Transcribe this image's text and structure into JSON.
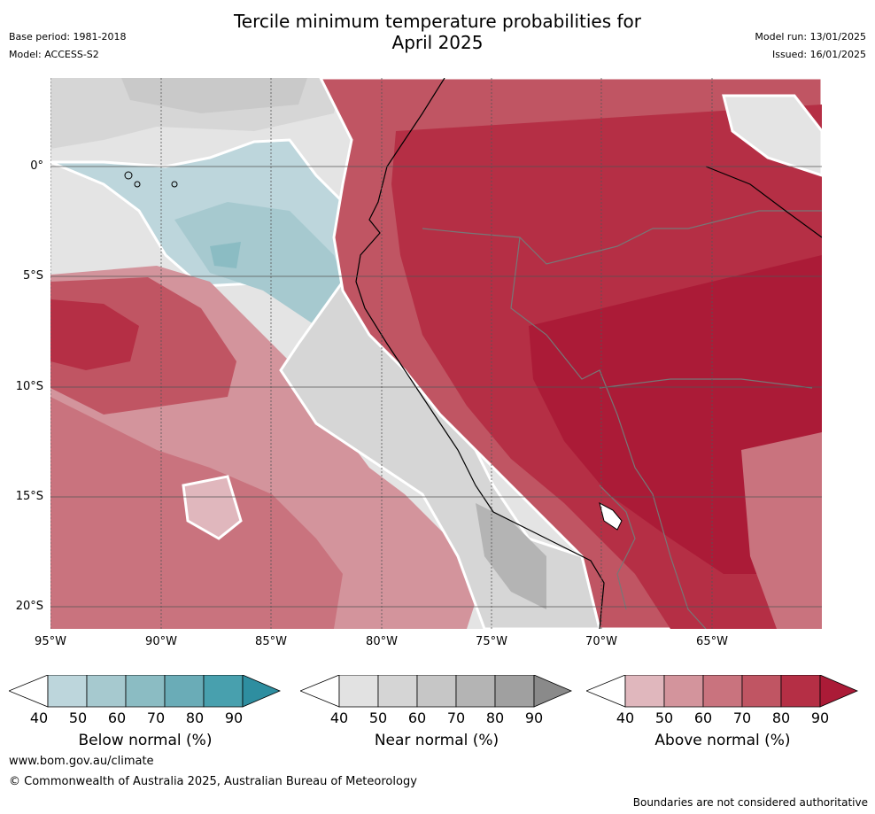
{
  "title": {
    "line1": "Tercile minimum temperature probabilities for",
    "line2": "April 2025"
  },
  "meta_left": {
    "base_period": "Base period: 1981-2018",
    "model": "Model: ACCESS-S2"
  },
  "meta_right": {
    "model_run": "Model run: 13/01/2025",
    "issued": "Issued: 16/01/2025"
  },
  "map": {
    "lat_labels": [
      "0°",
      "5°S",
      "10°S",
      "15°S",
      "20°S"
    ],
    "lon_labels": [
      "95°W",
      "90°W",
      "85°W",
      "80°W",
      "75°W",
      "70°W",
      "65°W"
    ]
  },
  "colorbars": [
    {
      "name": "below",
      "title": "Below normal (%)",
      "ticks": [
        "40",
        "50",
        "60",
        "70",
        "80",
        "90"
      ],
      "colors": [
        "#bdd6dc",
        "#a6c9cf",
        "#8bbcc3",
        "#6aacb7",
        "#48a0ae",
        "#2e8ea0"
      ]
    },
    {
      "name": "near",
      "title": "Near normal (%)",
      "ticks": [
        "40",
        "50",
        "60",
        "70",
        "80",
        "90"
      ],
      "colors": [
        "#e2e2e2",
        "#d5d5d5",
        "#c6c6c6",
        "#b4b4b4",
        "#a0a0a0",
        "#8a8a8a"
      ]
    },
    {
      "name": "above",
      "title": "Above normal (%)",
      "ticks": [
        "40",
        "50",
        "60",
        "70",
        "80",
        "90"
      ],
      "colors": [
        "#e0b7bd",
        "#d3949c",
        "#c9737e",
        "#c05563",
        "#b52f45",
        "#ab1b37"
      ]
    }
  ],
  "footer": {
    "website": "www.bom.gov.au/climate",
    "copyright": "© Commonwealth of Australia 2025, Australian Bureau of Meteorology",
    "disclaimer": "Boundaries are not considered authoritative"
  }
}
